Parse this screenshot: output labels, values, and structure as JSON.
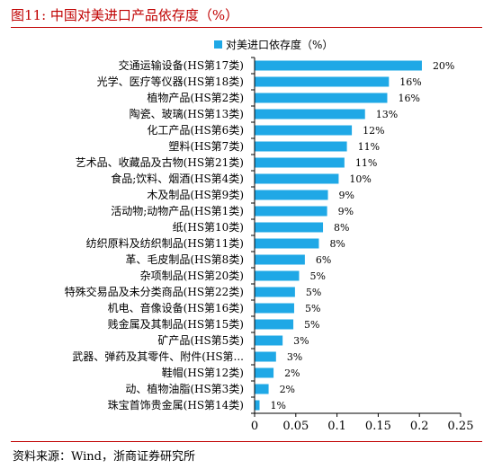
{
  "figure": {
    "title": "图11:   中国对美进口产品依存度（%）",
    "source": "资料来源：Wind，浙商证券研究所"
  },
  "colors": {
    "bar": "#1fa8e6",
    "title": "#c00000",
    "axis": "#000000"
  },
  "chart_data": {
    "type": "bar",
    "orientation": "horizontal",
    "legend": {
      "label": "对美进口依存度（%）",
      "position": "top"
    },
    "categories": [
      "交通运输设备(HS第17类)",
      "光学、医疗等仪器(HS第18类)",
      "植物产品(HS第2类)",
      "陶瓷、玻璃(HS第13类)",
      "化工产品(HS第6类)",
      "塑料(HS第7类)",
      "艺术品、收藏品及古物(HS第21类)",
      "食品;饮料、烟酒(HS第4类)",
      "木及制品(HS第9类)",
      "活动物;动物产品(HS第1类)",
      "纸(HS第10类)",
      "纺织原料及纺织制品(HS第11类)",
      "革、毛皮制品(HS第8类)",
      "杂项制品(HS第20类)",
      "特殊交易品及未分类商品(HS第22类)",
      "机电、音像设备(HS第16类)",
      "贱金属及其制品(HS第15类)",
      "矿产品(HS第5类)",
      "武器、弹药及其零件、附件(HS第...",
      "鞋帽(HS第12类)",
      "动、植物油脂(HS第3类)",
      "珠宝首饰贵金属(HS第14类)"
    ],
    "values": [
      0.203,
      0.163,
      0.161,
      0.134,
      0.118,
      0.112,
      0.109,
      0.102,
      0.089,
      0.088,
      0.083,
      0.078,
      0.061,
      0.054,
      0.049,
      0.048,
      0.047,
      0.034,
      0.026,
      0.023,
      0.017,
      0.006
    ],
    "value_labels": [
      "20%",
      "16%",
      "16%",
      "13%",
      "12%",
      "11%",
      "11%",
      "10%",
      "9%",
      "9%",
      "8%",
      "8%",
      "6%",
      "5%",
      "5%",
      "5%",
      "5%",
      "3%",
      "3%",
      "2%",
      "2%",
      "1%"
    ],
    "xlim": [
      0,
      0.25
    ],
    "x_ticks": [
      0,
      0.05,
      0.1,
      0.15,
      0.2,
      0.25
    ],
    "x_tick_labels": [
      "0",
      "0.05",
      "0.1",
      "0.15",
      "0.2",
      "0.25"
    ],
    "grid": false
  }
}
